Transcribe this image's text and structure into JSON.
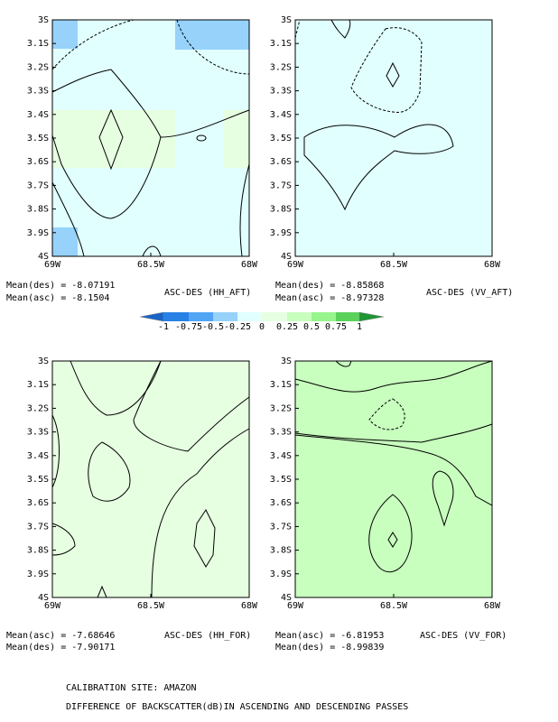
{
  "panels": [
    {
      "title": "ASC-DES (HH_AFT)",
      "means": [
        "Mean(des) = -8.07191",
        "Mean(asc) = -8.1504"
      ]
    },
    {
      "title": "ASC-DES (VV_AFT)",
      "means": [
        "Mean(des) = -8.85868",
        "Mean(asc) = -8.97328"
      ]
    },
    {
      "title": "ASC-DES (HH_FOR)",
      "means": [
        "Mean(asc) = -7.68646",
        "Mean(des) = -7.90171"
      ]
    },
    {
      "title": "ASC-DES (VV_FOR)",
      "means": [
        "Mean(asc) = -6.81953",
        "Mean(des) = -8.99839"
      ]
    }
  ],
  "y_tick_labels": [
    "3S",
    "3.1S",
    "3.2S",
    "3.3S",
    "3.4S",
    "3.5S",
    "3.6S",
    "3.7S",
    "3.8S",
    "3.9S",
    "4S"
  ],
  "x_tick_labels": [
    "69W",
    "68.5W",
    "68W"
  ],
  "colorbar": {
    "labels": [
      "-1",
      "-0.75",
      "-0.5",
      "-0.25",
      "0",
      "0.25",
      "0.5",
      "0.75",
      "1"
    ]
  },
  "footer": [
    "CALIBRATION SITE: AMAZON",
    "DIFFERENCE OF BACKSCATTER(dB)IN ASCENDING AND DESCENDING PASSES"
  ]
}
